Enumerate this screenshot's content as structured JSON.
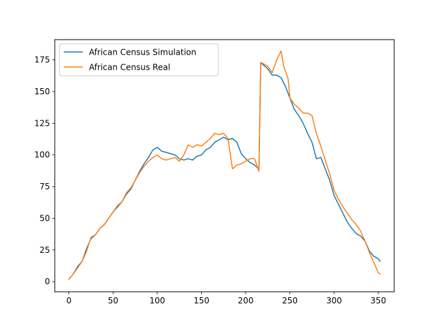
{
  "chart_data": {
    "type": "line",
    "title": "",
    "xlabel": "",
    "ylabel": "",
    "xlim": [
      -16,
      368
    ],
    "ylim": [
      -8,
      191
    ],
    "x_ticks": [
      0,
      50,
      100,
      150,
      200,
      250,
      300,
      350
    ],
    "y_ticks": [
      0,
      25,
      50,
      75,
      100,
      125,
      150,
      175
    ],
    "grid": false,
    "legend": "top-left",
    "series": [
      {
        "name": "African Census Simulation",
        "color": "#1f77b4",
        "points": [
          [
            0,
            2
          ],
          [
            5,
            6
          ],
          [
            10,
            12
          ],
          [
            15,
            16
          ],
          [
            20,
            26
          ],
          [
            25,
            34
          ],
          [
            30,
            37
          ],
          [
            35,
            42
          ],
          [
            40,
            45
          ],
          [
            45,
            50
          ],
          [
            50,
            55
          ],
          [
            55,
            59
          ],
          [
            60,
            63
          ],
          [
            65,
            69
          ],
          [
            70,
            73
          ],
          [
            75,
            80
          ],
          [
            80,
            87
          ],
          [
            85,
            93
          ],
          [
            90,
            98
          ],
          [
            95,
            104
          ],
          [
            100,
            106
          ],
          [
            105,
            103
          ],
          [
            110,
            102
          ],
          [
            115,
            101
          ],
          [
            120,
            100
          ],
          [
            125,
            97
          ],
          [
            130,
            96
          ],
          [
            135,
            97
          ],
          [
            140,
            96
          ],
          [
            145,
            99
          ],
          [
            150,
            100
          ],
          [
            155,
            104
          ],
          [
            160,
            106
          ],
          [
            165,
            110
          ],
          [
            170,
            112
          ],
          [
            175,
            114
          ],
          [
            180,
            112
          ],
          [
            185,
            113
          ],
          [
            190,
            110
          ],
          [
            195,
            101
          ],
          [
            200,
            97
          ],
          [
            205,
            94
          ],
          [
            210,
            92
          ],
          [
            215,
            89
          ],
          [
            217,
            173
          ],
          [
            220,
            171
          ],
          [
            225,
            168
          ],
          [
            230,
            163
          ],
          [
            235,
            163
          ],
          [
            240,
            161
          ],
          [
            245,
            154
          ],
          [
            250,
            145
          ],
          [
            255,
            136
          ],
          [
            260,
            131
          ],
          [
            265,
            125
          ],
          [
            270,
            117
          ],
          [
            275,
            110
          ],
          [
            280,
            97
          ],
          [
            285,
            98
          ],
          [
            290,
            89
          ],
          [
            295,
            80
          ],
          [
            300,
            68
          ],
          [
            305,
            61
          ],
          [
            310,
            54
          ],
          [
            315,
            47
          ],
          [
            320,
            42
          ],
          [
            325,
            38
          ],
          [
            330,
            36
          ],
          [
            335,
            32
          ],
          [
            340,
            24
          ],
          [
            345,
            20
          ],
          [
            350,
            18
          ],
          [
            352,
            16
          ]
        ]
      },
      {
        "name": "African Census Real",
        "color": "#ff7f0e",
        "points": [
          [
            0,
            2
          ],
          [
            5,
            6
          ],
          [
            10,
            11
          ],
          [
            15,
            16
          ],
          [
            20,
            24
          ],
          [
            25,
            35
          ],
          [
            30,
            37
          ],
          [
            35,
            42
          ],
          [
            40,
            45
          ],
          [
            45,
            50
          ],
          [
            50,
            55
          ],
          [
            55,
            60
          ],
          [
            60,
            63
          ],
          [
            65,
            70
          ],
          [
            70,
            74
          ],
          [
            75,
            80
          ],
          [
            80,
            86
          ],
          [
            85,
            91
          ],
          [
            90,
            95
          ],
          [
            95,
            98
          ],
          [
            100,
            100
          ],
          [
            105,
            97
          ],
          [
            110,
            96
          ],
          [
            115,
            97
          ],
          [
            120,
            98
          ],
          [
            125,
            95
          ],
          [
            130,
            100
          ],
          [
            135,
            108
          ],
          [
            140,
            106
          ],
          [
            145,
            108
          ],
          [
            150,
            107
          ],
          [
            155,
            110
          ],
          [
            160,
            113
          ],
          [
            165,
            117
          ],
          [
            170,
            116
          ],
          [
            175,
            117
          ],
          [
            180,
            113
          ],
          [
            185,
            89
          ],
          [
            190,
            92
          ],
          [
            195,
            93
          ],
          [
            200,
            95
          ],
          [
            205,
            97
          ],
          [
            210,
            97
          ],
          [
            215,
            87
          ],
          [
            217,
            173
          ],
          [
            220,
            172
          ],
          [
            225,
            170
          ],
          [
            230,
            165
          ],
          [
            235,
            175
          ],
          [
            240,
            182
          ],
          [
            243,
            170
          ],
          [
            248,
            160
          ],
          [
            250,
            145
          ],
          [
            255,
            140
          ],
          [
            260,
            137
          ],
          [
            265,
            133
          ],
          [
            270,
            133
          ],
          [
            275,
            131
          ],
          [
            280,
            117
          ],
          [
            285,
            107
          ],
          [
            290,
            96
          ],
          [
            295,
            85
          ],
          [
            300,
            72
          ],
          [
            305,
            65
          ],
          [
            310,
            59
          ],
          [
            315,
            54
          ],
          [
            320,
            49
          ],
          [
            325,
            45
          ],
          [
            330,
            40
          ],
          [
            335,
            32
          ],
          [
            340,
            23
          ],
          [
            345,
            15
          ],
          [
            350,
            7
          ],
          [
            352,
            6
          ]
        ]
      }
    ]
  }
}
